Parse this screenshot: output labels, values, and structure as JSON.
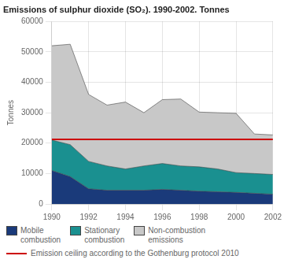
{
  "chart_data": {
    "type": "area",
    "stacked": true,
    "title": "Emissions of sulphur dioxide (SO₂). 1990-2002. Tonnes",
    "ylabel": "Tonnes",
    "x": [
      1990,
      1991,
      1992,
      1993,
      1994,
      1995,
      1996,
      1997,
      1998,
      1999,
      2000,
      2001,
      2002
    ],
    "series": [
      {
        "name": "Mobile\ncombustion",
        "color": "#1a3a7a",
        "values": [
          11000,
          9000,
          5000,
          4500,
          4500,
          4500,
          4800,
          4500,
          4200,
          4000,
          3800,
          3500,
          3200
        ]
      },
      {
        "name": "Stationary\ncombustion",
        "color": "#1a9090",
        "values": [
          10000,
          10500,
          9000,
          8000,
          7000,
          8000,
          8500,
          8000,
          8000,
          7500,
          6500,
          6500,
          6500
        ]
      },
      {
        "name": "Non-combustion\nemissions",
        "color": "#c8c8c8",
        "values": [
          31000,
          33000,
          22000,
          20000,
          22000,
          17500,
          21000,
          22000,
          18000,
          18500,
          19500,
          13000,
          13000
        ]
      }
    ],
    "reference_lines": [
      {
        "name": "Emission ceiling according to the Gothenburg protocol 2010",
        "value": 21200,
        "color": "#cc0000"
      }
    ],
    "xlim": [
      1990,
      2002
    ],
    "xticks": [
      1990,
      1992,
      1994,
      1996,
      1998,
      2000,
      2002
    ],
    "ylim": [
      0,
      60000
    ],
    "yticks": [
      0,
      10000,
      20000,
      30000,
      40000,
      50000,
      60000
    ],
    "grid": true
  }
}
